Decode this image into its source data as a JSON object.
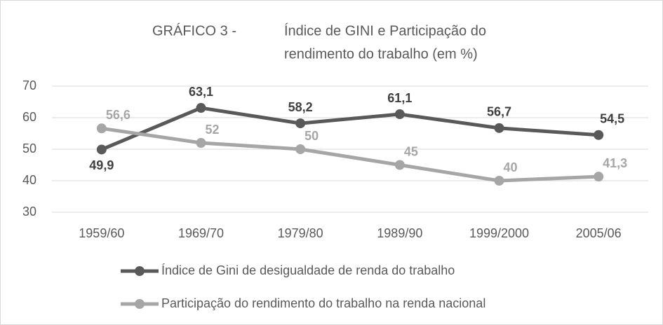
{
  "chart_data": {
    "type": "line",
    "title": "GRÁFICO 3 -",
    "subtitle": [
      "Índice de GINI e Participação do",
      "rendimento do trabalho (em %)"
    ],
    "categories": [
      "1959/60",
      "1969/70",
      "1979/80",
      "1989/90",
      "1999/2000",
      "2005/06"
    ],
    "series": [
      {
        "name": "Índice de Gini de desigualdade de renda do trabalho",
        "color": "#595959",
        "values": [
          49.9,
          63.1,
          58.2,
          61.1,
          56.7,
          54.5
        ],
        "value_labels": [
          "49,9",
          "63,1",
          "58,2",
          "61,1",
          "56,7",
          "54,5"
        ]
      },
      {
        "name": "Participação do rendimento do trabalho na renda nacional",
        "color": "#a6a6a6",
        "values": [
          56.6,
          52,
          50,
          45,
          40,
          41.3
        ],
        "value_labels": [
          "56,6",
          "52",
          "50",
          "45",
          "40",
          "41,3"
        ]
      }
    ],
    "ylim": [
      30,
      70
    ],
    "yticks": [
      30,
      40,
      50,
      60,
      70
    ],
    "grid": true,
    "legend": "bottom"
  }
}
